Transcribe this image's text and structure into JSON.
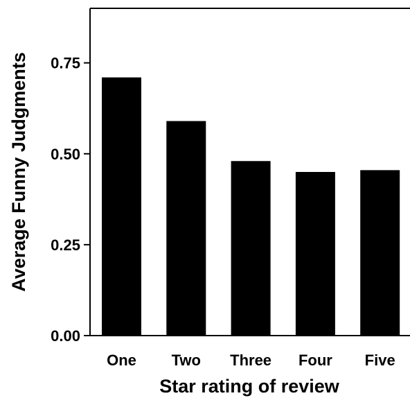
{
  "chart_data": {
    "type": "bar",
    "categories": [
      "One",
      "Two",
      "Three",
      "Four",
      "Five"
    ],
    "values": [
      0.71,
      0.59,
      0.48,
      0.45,
      0.455
    ],
    "xlabel": "Star rating of review",
    "ylabel": "Average Funny Judgments",
    "ylim": [
      0,
      0.9
    ],
    "yticks": [
      "0.00",
      "0.25",
      "0.50",
      "0.75"
    ],
    "grid": false,
    "bar_color": "#000000"
  }
}
